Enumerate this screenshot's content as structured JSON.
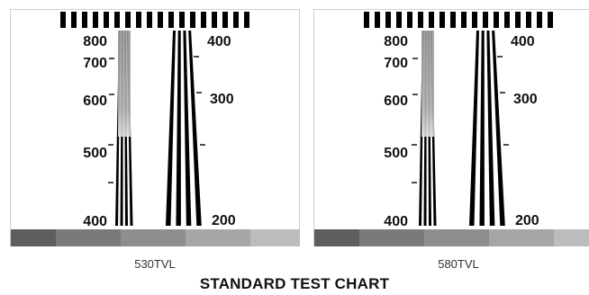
{
  "title": "STANDARD TEST CHART",
  "colors": {
    "bars": "#000000",
    "gray_steps": [
      "#5e5e5e",
      "#7a7a7a",
      "#8e8e8e",
      "#a6a6a6",
      "#bcbcbc"
    ]
  },
  "panels": [
    {
      "caption": "530TVL",
      "left_scale": [
        "800",
        "700",
        "600",
        "500",
        "400"
      ],
      "right_scale": [
        "400",
        "300",
        "200"
      ]
    },
    {
      "caption": "580TVL",
      "left_scale": [
        "800",
        "700",
        "600",
        "500",
        "400"
      ],
      "right_scale": [
        "400",
        "300",
        "200"
      ]
    }
  ]
}
